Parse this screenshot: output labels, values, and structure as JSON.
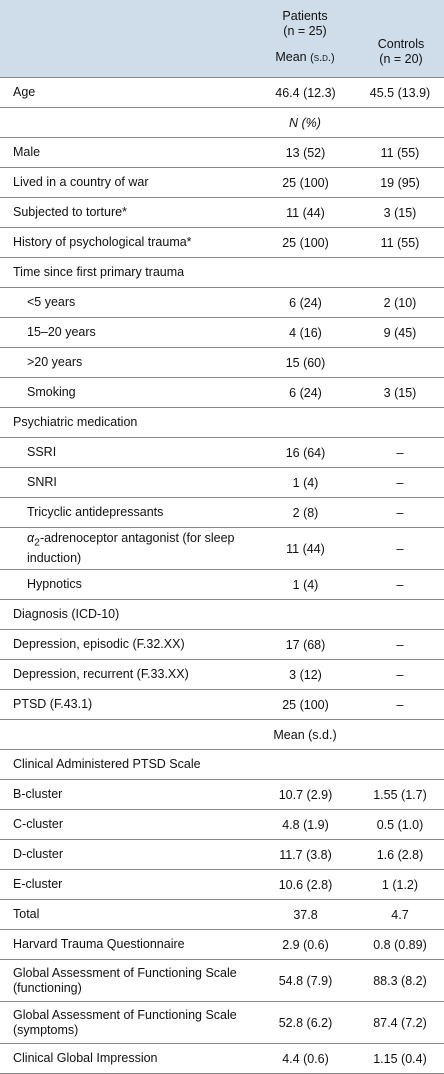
{
  "header": {
    "patients_line1": "Patients",
    "patients_n": "(n = 25)",
    "patients_mean": "Mean",
    "patients_sd": "(s.d.)",
    "controls_line1": "Controls",
    "controls_n": "(n = 20)"
  },
  "rows": [
    {
      "label": "Age",
      "p": "46.4 (12.3)",
      "c": "45.5 (13.9)"
    },
    {
      "label": "",
      "p": "N (%)",
      "c": ""
    },
    {
      "label": "Male",
      "p": "13 (52)",
      "c": "11 (55)"
    },
    {
      "label": "Lived in a country of war",
      "p": "25 (100)",
      "c": "19 (95)"
    },
    {
      "label": "Subjected to torture*",
      "p": "11 (44)",
      "c": "3 (15)"
    },
    {
      "label": "History of psychological trauma*",
      "p": "25 (100)",
      "c": "11 (55)"
    },
    {
      "label": "Time since first primary trauma",
      "p": "",
      "c": ""
    },
    {
      "label": "<5 years",
      "p": "6 (24)",
      "c": "2 (10)"
    },
    {
      "label": "15–20 years",
      "p": "4 (16)",
      "c": "9 (45)"
    },
    {
      "label": ">20 years",
      "p": "15 (60)",
      "c": ""
    },
    {
      "label": "Smoking",
      "p": "6 (24)",
      "c": "3 (15)"
    },
    {
      "label": "Psychiatric medication",
      "p": "",
      "c": ""
    },
    {
      "label": "SSRI",
      "p": "16 (64)",
      "c": "–"
    },
    {
      "label": "SNRI",
      "p": "1 (4)",
      "c": "–"
    },
    {
      "label": "Tricyclic antidepressants",
      "p": "2 (8)",
      "c": "–"
    },
    {
      "label": "-adrenoceptor antagonist (for sleep induction)",
      "alpha": "α",
      "alpha_sub": "2",
      "p": "11 (44)",
      "c": "–"
    },
    {
      "label": "Hypnotics",
      "p": "1 (4)",
      "c": "–"
    },
    {
      "label": "Diagnosis (ICD-10)",
      "p": "",
      "c": ""
    },
    {
      "label": "Depression, episodic (F.32.XX)",
      "p": "17 (68)",
      "c": "–"
    },
    {
      "label": "Depression, recurrent (F.33.XX)",
      "p": "3 (12)",
      "c": "–"
    },
    {
      "label": "PTSD (F.43.1)",
      "p": "25 (100)",
      "c": "–"
    },
    {
      "label": "",
      "p": "Mean (s.d.)",
      "c": ""
    },
    {
      "label": "Clinical Administered PTSD Scale",
      "p": "",
      "c": ""
    },
    {
      "label": "B-cluster",
      "p": "10.7 (2.9)",
      "c": "1.55 (1.7)"
    },
    {
      "label": "C-cluster",
      "p": "4.8 (1.9)",
      "c": "0.5 (1.0)"
    },
    {
      "label": "D-cluster",
      "p": "11.7 (3.8)",
      "c": "1.6 (2.8)"
    },
    {
      "label": "E-cluster",
      "p": "10.6 (2.8)",
      "c": "1 (1.2)"
    },
    {
      "label": "Total",
      "p": "37.8",
      "c": "4.7"
    },
    {
      "label": "Harvard Trauma Questionnaire",
      "p": "2.9 (0.6)",
      "c": "0.8 (0.89)"
    },
    {
      "label": "Global Assessment of Functioning Scale (functioning)",
      "p": "54.8 (7.9)",
      "c": "88.3 (8.2)"
    },
    {
      "label": "Global Assessment of Functioning Scale (symptoms)",
      "p": "52.8 (6.2)",
      "c": "87.4 (7.2)"
    },
    {
      "label": "Clinical Global Impression",
      "p": "4.4 (0.6)",
      "c": "1.15 (0.4)"
    }
  ]
}
